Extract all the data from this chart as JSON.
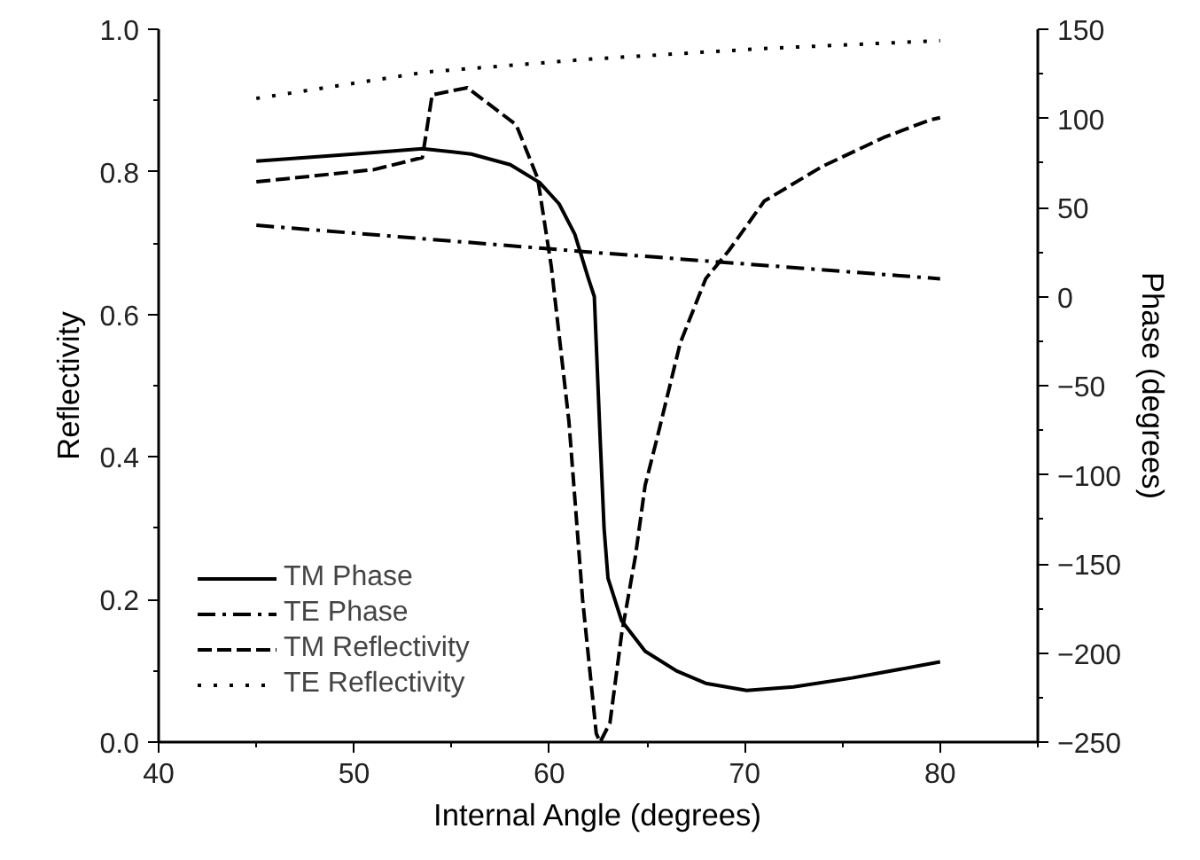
{
  "chart_data": {
    "type": "line",
    "xlabel": "Internal Angle (degrees)",
    "ylabel": "Reflectivity",
    "y2label": "Phase (degrees)",
    "xlim": [
      40,
      85
    ],
    "xticks": [
      40,
      50,
      60,
      70,
      80
    ],
    "ylim": [
      0,
      1
    ],
    "yticks": [
      {
        "value": 0,
        "label": "0.0"
      },
      0.2,
      0.4,
      0.6,
      0.8,
      {
        "value": 1,
        "label": "1.0"
      }
    ],
    "y2lim": [
      -250,
      150
    ],
    "y2ticks": [
      -250,
      -200,
      -150,
      -100,
      -50,
      0,
      50,
      100,
      150
    ],
    "grid": false,
    "legend": "bottom left",
    "marker": "none",
    "series": [
      {
        "name": "TM Phase",
        "color": "#000000",
        "axis": "y2",
        "line_style": "solid",
        "x": [
          45,
          50,
          53.5,
          56,
          58,
          59.5,
          60.5,
          61.3,
          62,
          62.3,
          62.6,
          62.8,
          63.0,
          63.7,
          64.9,
          66.5,
          68,
          70.1,
          72.5,
          75.5,
          80
        ],
        "values": [
          76,
          80,
          83,
          80,
          74,
          64,
          52,
          35,
          10,
          0,
          -80,
          -130,
          -158,
          -182,
          -199,
          -210,
          -217,
          -221,
          -219,
          -214,
          -205
        ]
      },
      {
        "name": "TE Phase",
        "color": "#000000",
        "axis": "y2",
        "line_style": "dashdot",
        "x": [
          45,
          62,
          80
        ],
        "values": [
          40,
          25,
          10
        ]
      },
      {
        "name": "TM Reflectivity",
        "color": "#000000",
        "line_style": "dashed",
        "x": [
          45,
          51,
          53.5,
          54,
          55.8,
          58.3,
          59.4,
          60.1,
          61,
          61.7,
          62.4,
          62.6,
          63.1,
          63.7,
          64.4,
          64.9,
          65.5,
          66.7,
          68,
          69.2,
          71,
          74,
          77.1,
          79.5,
          80
        ],
        "values": [
          0.786,
          0.803,
          0.82,
          0.908,
          0.918,
          0.866,
          0.791,
          0.667,
          0.45,
          0.2,
          0.012,
          0,
          0.027,
          0.152,
          0.26,
          0.36,
          0.425,
          0.56,
          0.65,
          0.69,
          0.759,
          0.808,
          0.848,
          0.873,
          0.876
        ]
      },
      {
        "name": "TE Reflectivity",
        "color": "#000000",
        "line_style": "dotted",
        "x": [
          45,
          53.7,
          62,
          71,
          80
        ],
        "values": [
          0.903,
          0.94,
          0.958,
          0.973,
          0.984
        ]
      }
    ]
  }
}
